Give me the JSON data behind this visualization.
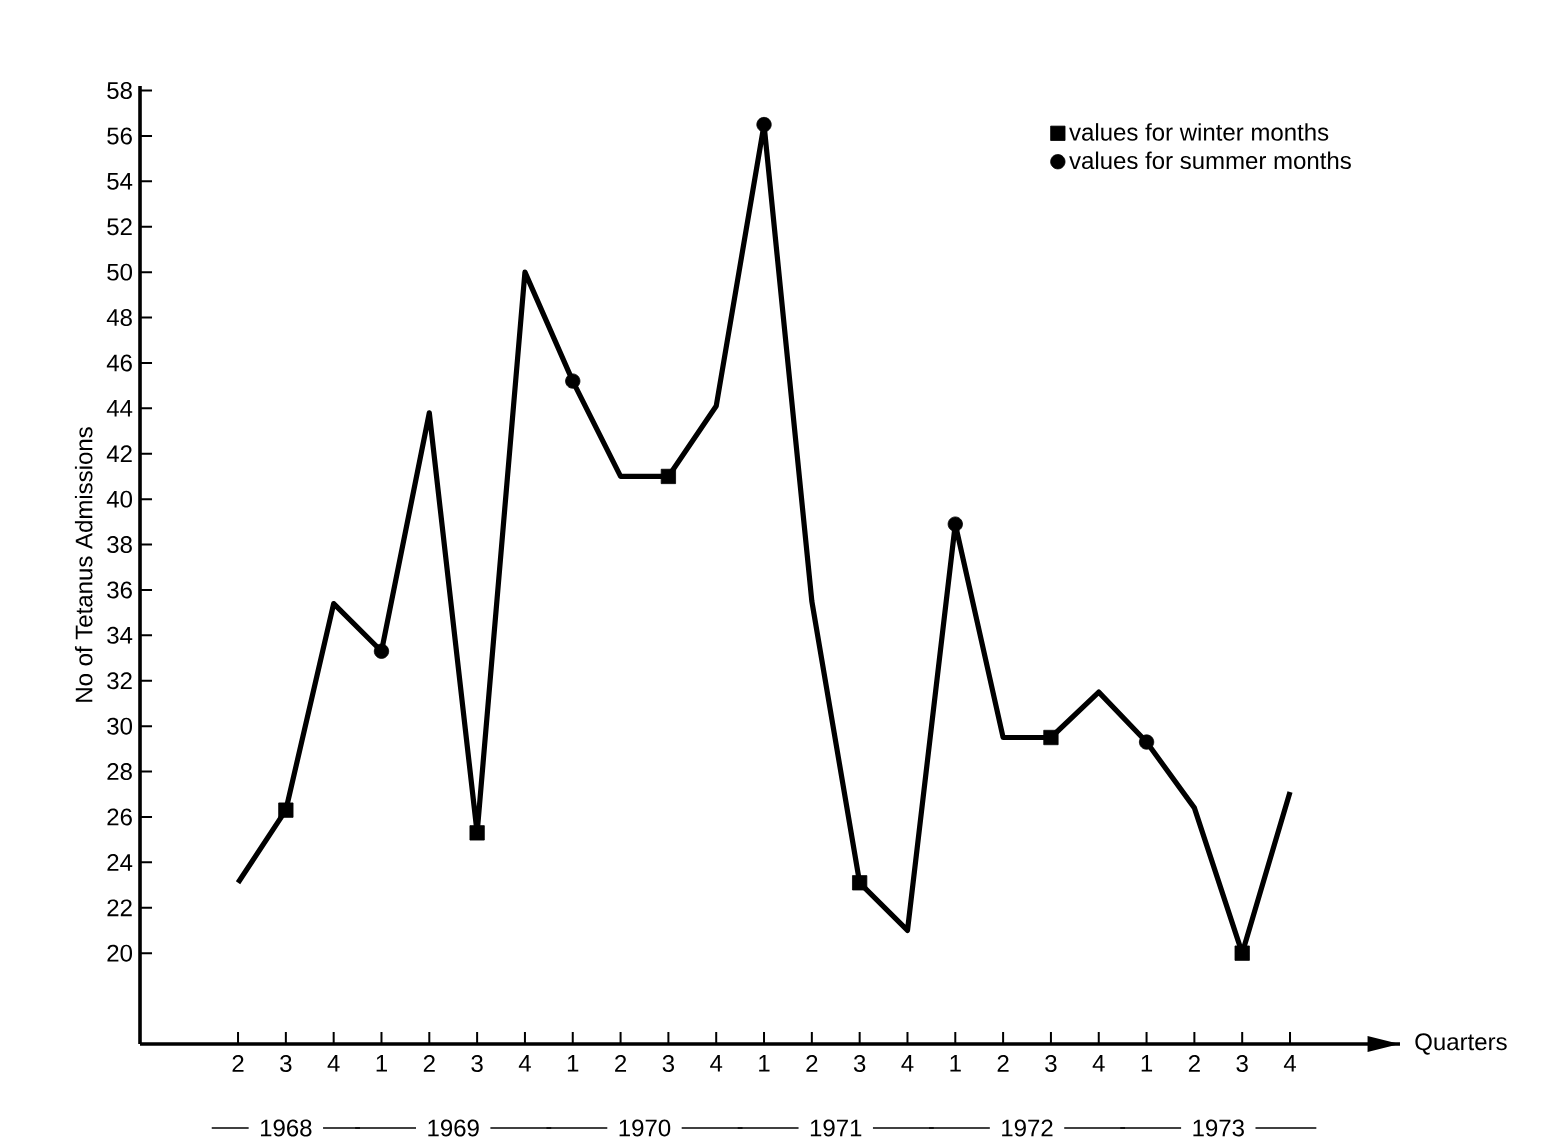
{
  "chart_data": {
    "type": "line",
    "xlabel": "Quarters",
    "ylabel": "No of Tetanus Admissions",
    "categories": [
      "2",
      "3",
      "4",
      "1",
      "2",
      "3",
      "4",
      "1",
      "2",
      "3",
      "4",
      "1",
      "2",
      "3",
      "4",
      "1",
      "2",
      "3",
      "4",
      "1",
      "2",
      "3",
      "4"
    ],
    "series": [
      {
        "color": "#000000",
        "marker": "none",
        "values": [
          23.1,
          26.3,
          35.4,
          33.3,
          43.8,
          25.3,
          50.0,
          45.2,
          41.0,
          41.0,
          44.1,
          56.5,
          35.5,
          23.1,
          21.0,
          38.9,
          29.5,
          29.5,
          31.5,
          29.3,
          26.4,
          20.0,
          27.1
        ]
      },
      {
        "type": "scatter",
        "name": "values for winter months",
        "color": "#000000",
        "marker": "square",
        "values": [
          null,
          26.3,
          null,
          null,
          null,
          25.3,
          null,
          null,
          null,
          41.0,
          null,
          null,
          null,
          23.1,
          null,
          null,
          null,
          29.5,
          null,
          null,
          null,
          20.0,
          null
        ]
      },
      {
        "type": "scatter",
        "name": "values for summer months",
        "color": "#000000",
        "marker": "circle",
        "values": [
          null,
          null,
          null,
          33.3,
          null,
          null,
          null,
          45.2,
          null,
          null,
          null,
          56.5,
          null,
          null,
          null,
          38.9,
          null,
          null,
          null,
          29.3,
          null,
          null,
          null
        ]
      }
    ],
    "ylim": [
      16,
      58.2
    ],
    "yticks": [
      20,
      22,
      24,
      26,
      28,
      30,
      32,
      34,
      36,
      38,
      40,
      42,
      44,
      46,
      48,
      50,
      52,
      54,
      56,
      58
    ],
    "legend": "top right",
    "annotations": [
      "1968",
      "1969",
      "1970",
      "1971",
      "1972",
      "1973"
    ]
  }
}
